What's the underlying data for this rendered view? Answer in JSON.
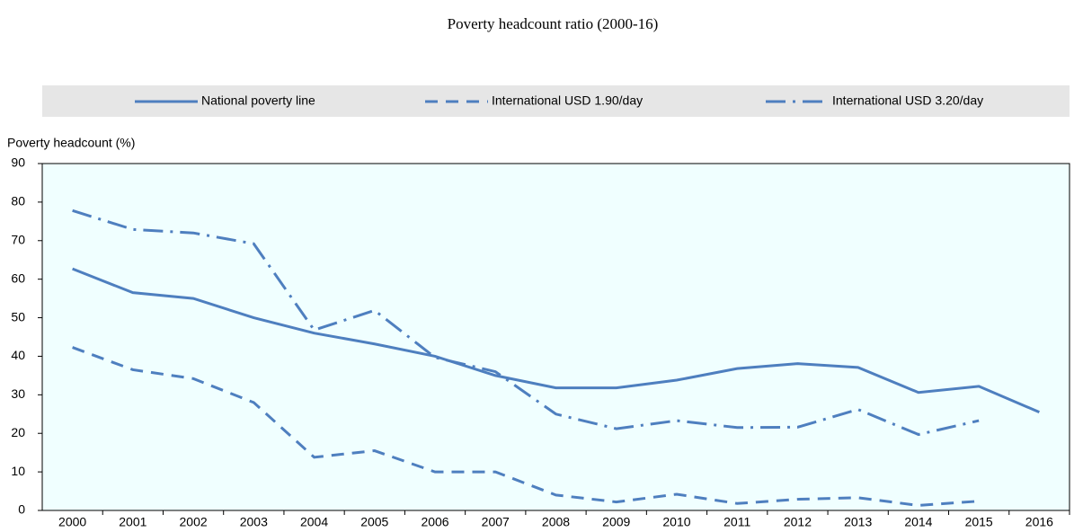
{
  "chart_data": {
    "type": "line",
    "title": "Poverty headcount ratio (2000-16)",
    "y_label": "Poverty headcount (%)",
    "categories": [
      "2000",
      "2001",
      "2002",
      "2003",
      "2004",
      "2005",
      "2006",
      "2007",
      "2008",
      "2009",
      "2010",
      "2011",
      "2012",
      "2013",
      "2014",
      "2015",
      "2016"
    ],
    "series": [
      {
        "name": "National poverty line",
        "color": "#4e7fbf",
        "dash": "solid",
        "values": [
          62.7,
          56.5,
          55,
          50,
          46,
          43.2,
          40,
          35,
          31.8,
          31.8,
          33.8,
          36.8,
          38.1,
          37.1,
          30.6,
          32.2,
          25.5
        ]
      },
      {
        "name": "International USD 1.90/day",
        "color": "#4e7fbf",
        "dash": "dashed",
        "values": [
          42.3,
          36.5,
          34.2,
          28,
          13.8,
          15.5,
          10,
          10,
          4,
          2.2,
          4.2,
          1.8,
          2.9,
          3.3,
          1.3,
          2.4,
          null
        ]
      },
      {
        "name": "International USD 3.20/day",
        "color": "#4e7fbf",
        "dash": "dashdot",
        "values": [
          77.8,
          72.9,
          72,
          69.2,
          46.8,
          51.9,
          39.7,
          36,
          25,
          21.2,
          23.3,
          21.5,
          21.6,
          26.2,
          19.7,
          23.3,
          null
        ]
      }
    ],
    "ylim": [
      0,
      90
    ],
    "yticks": [
      0,
      10,
      20,
      30,
      40,
      50,
      60,
      70,
      80,
      90
    ],
    "grid": false
  }
}
